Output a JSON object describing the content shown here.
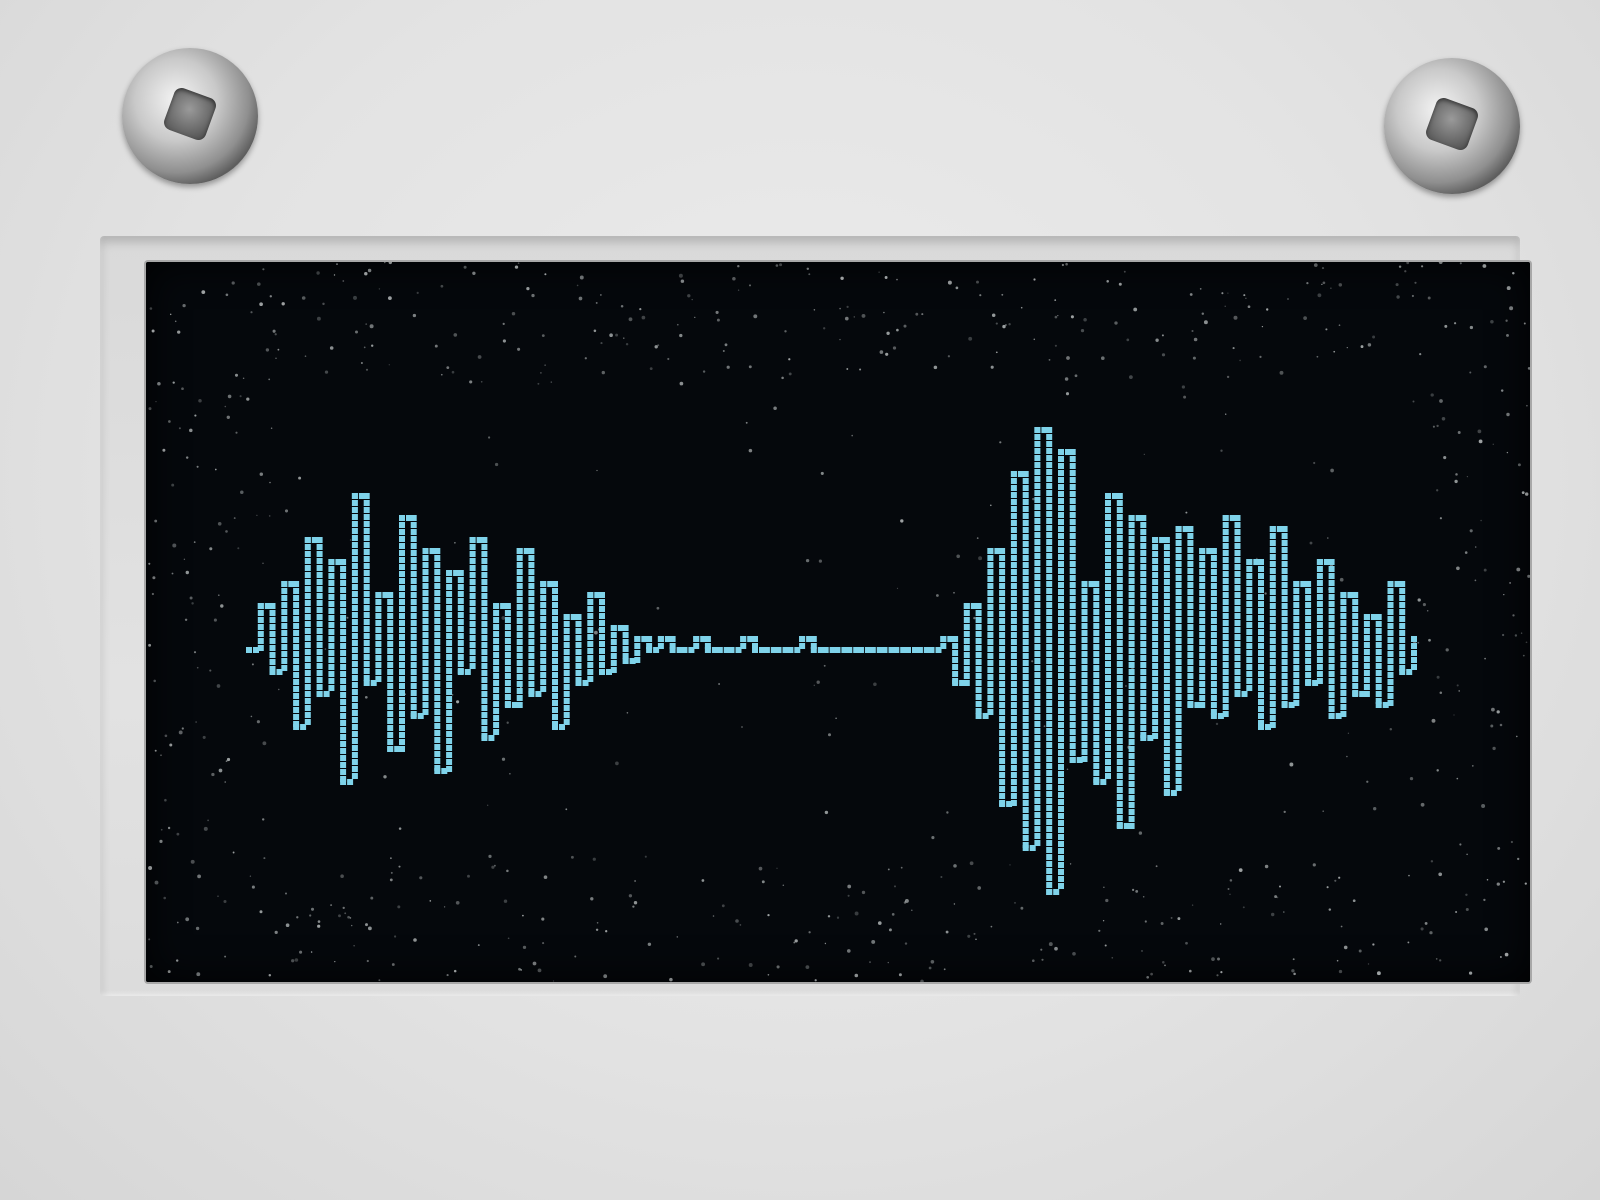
{
  "device": {
    "screen_color": "#05080c",
    "waveform_color": "#7fd3ea",
    "housing_color": "#e4e4e4"
  },
  "waveform": {
    "description_free_samples": [
      0,
      4,
      -2,
      6,
      -7,
      10,
      -4,
      8,
      -12,
      14,
      -3,
      5,
      -9,
      12,
      -6,
      9,
      -11,
      7,
      -2,
      10,
      -8,
      4,
      -5,
      9,
      -4,
      6,
      -7,
      3,
      -3,
      5,
      -2,
      2,
      -1,
      1,
      0,
      1,
      0,
      0,
      1,
      0,
      0,
      0,
      1,
      0,
      0,
      0,
      0,
      1,
      0,
      0,
      0,
      0,
      0,
      0,
      0,
      0,
      0,
      0,
      0,
      1,
      -3,
      4,
      -6,
      9,
      -14,
      16,
      -18,
      20,
      -22,
      18,
      -10,
      6,
      -12,
      14,
      -16,
      12,
      -8,
      10,
      -13,
      11,
      -5,
      9,
      -6,
      12,
      -4,
      8,
      -7,
      11,
      -5,
      6,
      -3,
      8,
      -6,
      5,
      -4,
      3,
      -5,
      6,
      -2,
      1
    ]
  }
}
